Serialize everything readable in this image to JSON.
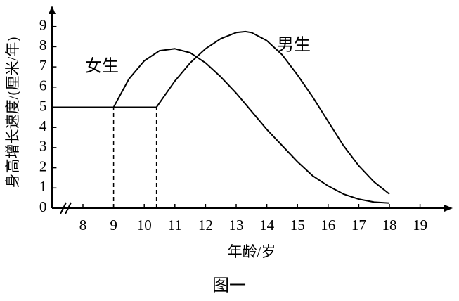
{
  "chart_data": {
    "type": "line",
    "caption": "图一",
    "x_label": "年龄/岁",
    "y_label": "身高增长速度/(厘米/年)",
    "xlim": [
      7,
      20
    ],
    "ylim": [
      0,
      10
    ],
    "xticks": [
      8,
      9,
      10,
      11,
      12,
      13,
      14,
      15,
      16,
      17,
      18,
      19
    ],
    "yticks": [
      0,
      1,
      2,
      3,
      4,
      5,
      6,
      7,
      8,
      9
    ],
    "dashed_verticals": [
      9,
      10.4
    ],
    "series": [
      {
        "name": "女生",
        "color": "#000000",
        "x": [
          7,
          9,
          9.5,
          10,
          10.5,
          11,
          11.5,
          12,
          12.5,
          13,
          13.5,
          14,
          14.5,
          15,
          15.5,
          16,
          16.5,
          17,
          17.5,
          18
        ],
        "values": [
          5,
          5,
          6.4,
          7.3,
          7.8,
          7.9,
          7.7,
          7.2,
          6.5,
          5.7,
          4.8,
          3.9,
          3.1,
          2.3,
          1.6,
          1.1,
          0.7,
          0.45,
          0.3,
          0.25
        ]
      },
      {
        "name": "男生",
        "color": "#000000",
        "x": [
          7,
          10.4,
          11,
          11.5,
          12,
          12.5,
          13,
          13.3,
          13.5,
          14,
          14.5,
          15,
          15.5,
          16,
          16.5,
          17,
          17.5,
          18
        ],
        "values": [
          5,
          5,
          6.3,
          7.2,
          7.9,
          8.4,
          8.7,
          8.75,
          8.7,
          8.3,
          7.6,
          6.6,
          5.5,
          4.3,
          3.1,
          2.1,
          1.3,
          0.7
        ]
      }
    ]
  }
}
